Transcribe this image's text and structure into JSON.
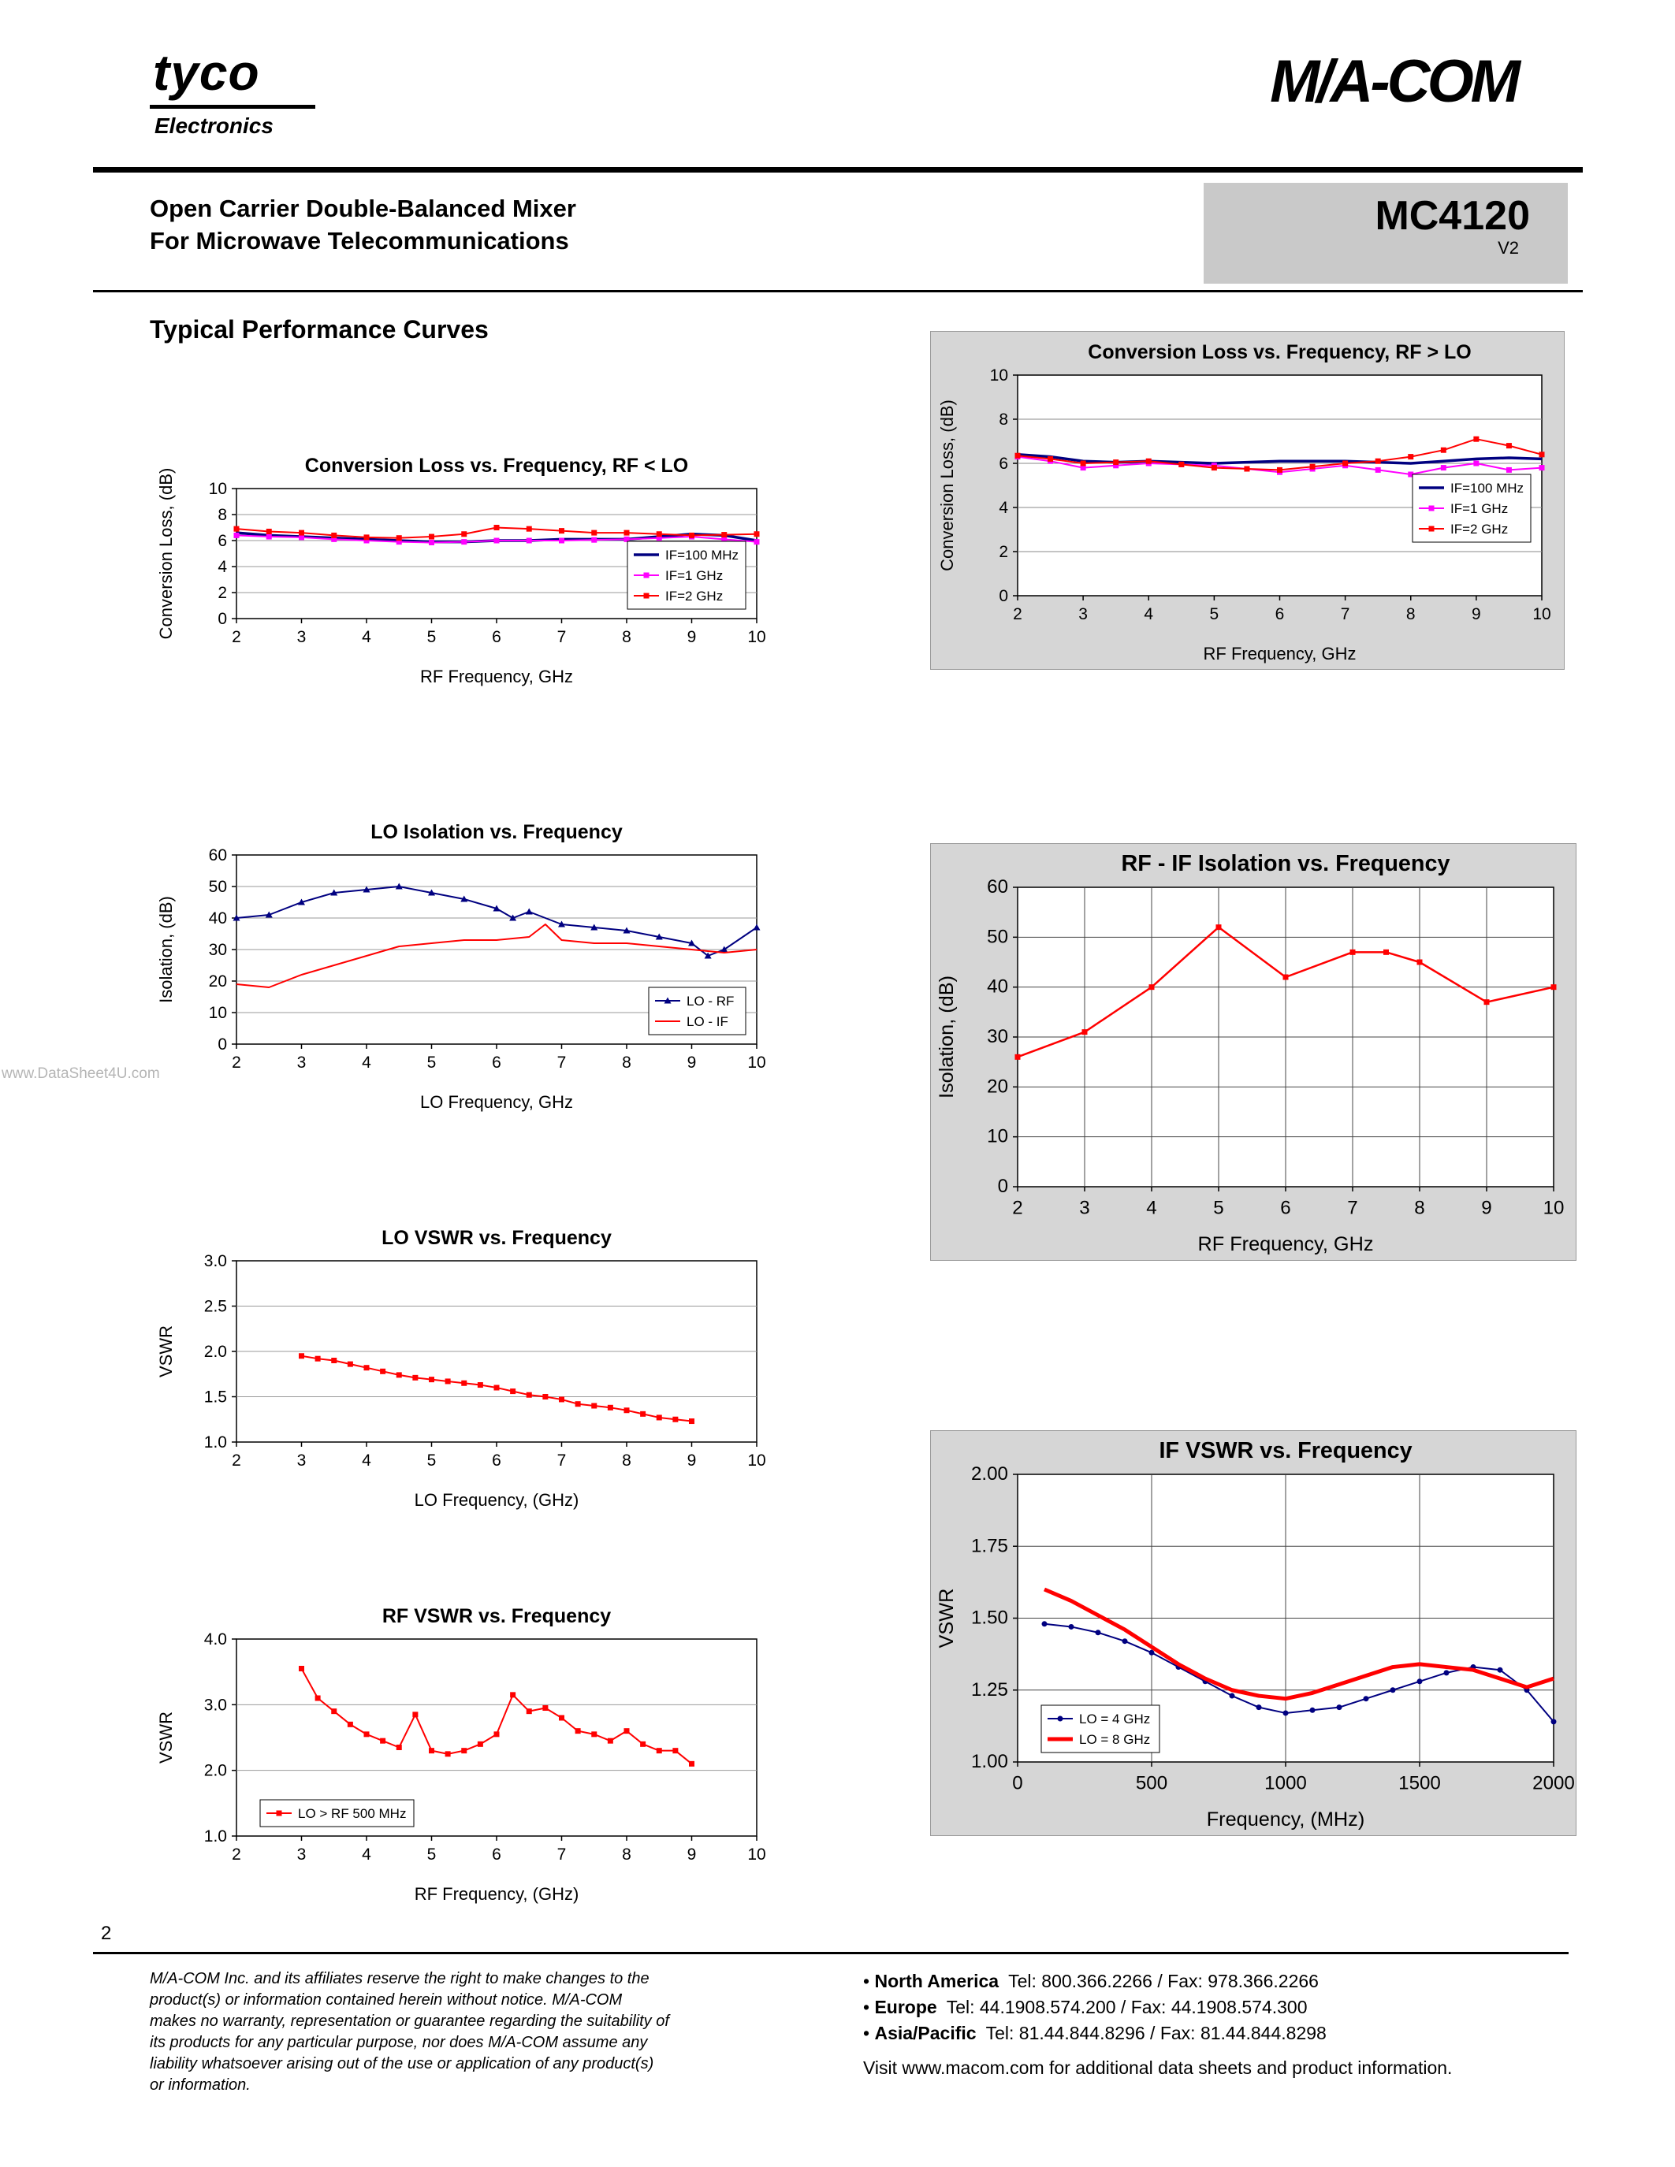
{
  "page": {
    "number": "2",
    "watermark": "www.DataSheet4U.com"
  },
  "header": {
    "brand_name": "tyco",
    "brand_sub": "Electronics",
    "logo_right": "M/A-COM",
    "title_line1": "Open Carrier Double-Balanced Mixer",
    "title_line2": "For Microwave Telecommunications",
    "part_number": "MC4120",
    "part_rev": "V2"
  },
  "section_title": "Typical Performance Curves",
  "footer": {
    "legal": "M/A-COM Inc. and its affiliates reserve the right to make changes to the product(s) or information contained herein without notice. M/A-COM makes no warranty, representation or guarantee regarding the suitability of its products for any particular purpose, nor does M/A-COM assume any liability whatsoever arising out of the use or application of any product(s) or information.",
    "contacts": [
      {
        "region": "North America",
        "info": "Tel: 800.366.2266 / Fax: 978.366.2266"
      },
      {
        "region": "Europe",
        "info": "Tel: 44.1908.574.200 / Fax: 44.1908.574.300"
      },
      {
        "region": "Asia/Pacific",
        "info": "Tel: 81.44.844.8296 / Fax: 81.44.844.8298"
      }
    ],
    "visit": "Visit www.macom.com for additional data sheets and product information."
  },
  "chart_data": [
    {
      "type": "line",
      "title": "Conversion Loss vs. Frequency,  RF < LO",
      "xlabel": "RF Frequency, GHz",
      "ylabel": "Conversion Loss, (dB)",
      "xlim": [
        2,
        10
      ],
      "ylim": [
        0,
        10
      ],
      "xticks": [
        2,
        3,
        4,
        5,
        6,
        7,
        8,
        9,
        10
      ],
      "xtick_labels": [
        "2",
        "3",
        "4",
        "5",
        "6",
        "7",
        "8",
        "9",
        "10"
      ],
      "yticks": [
        0,
        2,
        4,
        6,
        8,
        10
      ],
      "ytick_labels": [
        "0",
        "2",
        "4",
        "6",
        "8",
        "10"
      ],
      "grid_x": false,
      "grid_y": true,
      "grid_color": "#999999",
      "legend_pos": "bottom-right",
      "series": [
        {
          "name": "IF=100 MHz",
          "color": "#000080",
          "width": 3.5,
          "marker": "none",
          "x": [
            2,
            2.5,
            3,
            3.5,
            4,
            4.5,
            5,
            5.5,
            6,
            6.5,
            7,
            7.5,
            8,
            8.5,
            9,
            9.5,
            10
          ],
          "y": [
            6.6,
            6.4,
            6.3,
            6.2,
            6.1,
            6.0,
            5.9,
            5.9,
            6.0,
            6.0,
            6.1,
            6.1,
            6.1,
            6.3,
            6.5,
            6.4,
            6.0
          ]
        },
        {
          "name": "IF=1 GHz",
          "color": "#ff00ff",
          "width": 2,
          "marker": "square",
          "x": [
            2,
            2.5,
            3,
            3.5,
            4,
            4.5,
            5,
            5.5,
            6,
            6.5,
            7,
            7.5,
            8,
            8.5,
            9,
            9.5,
            10
          ],
          "y": [
            6.4,
            6.3,
            6.25,
            6.1,
            6.0,
            5.9,
            5.85,
            5.9,
            6.0,
            6.0,
            6.0,
            6.05,
            6.1,
            6.2,
            6.3,
            6.1,
            5.9
          ]
        },
        {
          "name": "IF=2 GHz",
          "color": "#ff0000",
          "width": 2,
          "marker": "square",
          "x": [
            2,
            2.5,
            3,
            3.5,
            4,
            4.5,
            5,
            5.5,
            6,
            6.5,
            7,
            7.5,
            8,
            8.5,
            9,
            9.5,
            10
          ],
          "y": [
            6.9,
            6.7,
            6.6,
            6.4,
            6.25,
            6.2,
            6.3,
            6.5,
            7.0,
            6.9,
            6.75,
            6.6,
            6.6,
            6.5,
            6.4,
            6.45,
            6.5
          ]
        }
      ]
    },
    {
      "type": "line",
      "title": "Conversion Loss vs. Frequency, RF > LO",
      "xlabel": "RF Frequency, GHz",
      "ylabel": "Conversion Loss, (dB)",
      "xlim": [
        2,
        10
      ],
      "ylim": [
        0,
        10
      ],
      "xticks": [
        2,
        3,
        4,
        5,
        6,
        7,
        8,
        9,
        10
      ],
      "xtick_labels": [
        "2",
        "3",
        "4",
        "5",
        "6",
        "7",
        "8",
        "9",
        "10"
      ],
      "yticks": [
        0,
        2,
        4,
        6,
        8,
        10
      ],
      "ytick_labels": [
        "0",
        "2",
        "4",
        "6",
        "8",
        "10"
      ],
      "grid_x": false,
      "grid_y": true,
      "grid_color": "#8a8a8a",
      "legend_pos": "right",
      "series": [
        {
          "name": "IF=100 MHz",
          "color": "#000080",
          "width": 3.5,
          "marker": "none",
          "x": [
            2,
            2.5,
            3,
            3.5,
            4,
            4.5,
            5,
            5.5,
            6,
            6.5,
            7,
            7.5,
            8,
            8.5,
            9,
            9.5,
            10
          ],
          "y": [
            6.4,
            6.3,
            6.1,
            6.05,
            6.1,
            6.05,
            6.0,
            6.05,
            6.1,
            6.1,
            6.1,
            6.05,
            6.0,
            6.1,
            6.2,
            6.25,
            6.2
          ]
        },
        {
          "name": "IF=1 GHz",
          "color": "#ff00ff",
          "width": 2,
          "marker": "square",
          "x": [
            2,
            2.5,
            3,
            3.5,
            4,
            4.5,
            5,
            5.5,
            6,
            6.5,
            7,
            7.5,
            8,
            8.5,
            9,
            9.5,
            10
          ],
          "y": [
            6.3,
            6.1,
            5.8,
            5.9,
            6.0,
            5.95,
            5.9,
            5.75,
            5.6,
            5.75,
            5.9,
            5.7,
            5.5,
            5.8,
            6.0,
            5.7,
            5.8
          ]
        },
        {
          "name": "IF=2 GHz",
          "color": "#ff0000",
          "width": 2,
          "marker": "square",
          "x": [
            2,
            2.5,
            3,
            3.5,
            4,
            4.5,
            5,
            5.5,
            6,
            6.5,
            7,
            7.5,
            8,
            8.5,
            9,
            9.5,
            10
          ],
          "y": [
            6.35,
            6.2,
            6.0,
            6.05,
            6.1,
            5.95,
            5.8,
            5.75,
            5.7,
            5.85,
            6.0,
            6.1,
            6.3,
            6.6,
            7.1,
            6.8,
            6.4
          ]
        }
      ]
    },
    {
      "type": "line",
      "title": "LO Isolation vs. Frequency",
      "xlabel": "LO Frequency, GHz",
      "ylabel": "Isolation, (dB)",
      "xlim": [
        2,
        10
      ],
      "ylim": [
        0,
        60
      ],
      "xticks": [
        2,
        3,
        4,
        5,
        6,
        7,
        8,
        9,
        10
      ],
      "xtick_labels": [
        "2",
        "3",
        "4",
        "5",
        "6",
        "7",
        "8",
        "9",
        "10"
      ],
      "yticks": [
        0,
        10,
        20,
        30,
        40,
        50,
        60
      ],
      "ytick_labels": [
        "0",
        "10",
        "20",
        "30",
        "40",
        "50",
        "60"
      ],
      "grid_x": false,
      "grid_y": true,
      "grid_color": "#999999",
      "legend_pos": "bottom-right",
      "series": [
        {
          "name": "LO - RF",
          "color": "#000080",
          "width": 2,
          "marker": "triangle",
          "x": [
            2,
            2.5,
            3,
            3.5,
            4,
            4.5,
            5,
            5.5,
            6,
            6.25,
            6.5,
            7,
            7.5,
            8,
            8.5,
            9,
            9.25,
            9.5,
            10
          ],
          "y": [
            40,
            41,
            45,
            48,
            49,
            50,
            48,
            46,
            43,
            40,
            42,
            38,
            37,
            36,
            34,
            32,
            28,
            30,
            37
          ]
        },
        {
          "name": "LO - IF",
          "color": "#ff0000",
          "width": 2,
          "marker": "none",
          "x": [
            2,
            2.5,
            3,
            3.5,
            4,
            4.5,
            5,
            5.5,
            6,
            6.5,
            6.75,
            7,
            7.5,
            8,
            8.5,
            9,
            9.5,
            10
          ],
          "y": [
            19,
            18,
            22,
            25,
            28,
            31,
            32,
            33,
            33,
            34,
            38,
            33,
            32,
            32,
            31,
            30,
            29,
            30
          ]
        }
      ]
    },
    {
      "type": "line",
      "title": "RF - IF Isolation vs. Frequency",
      "xlabel": "RF Frequency, GHz",
      "ylabel": "Isolation, (dB)",
      "xlim": [
        2,
        10
      ],
      "ylim": [
        0,
        60
      ],
      "xticks": [
        2,
        3,
        4,
        5,
        6,
        7,
        8,
        9,
        10
      ],
      "xtick_labels": [
        "2",
        "3",
        "4",
        "5",
        "6",
        "7",
        "8",
        "9",
        "10"
      ],
      "yticks": [
        0,
        10,
        20,
        30,
        40,
        50,
        60
      ],
      "ytick_labels": [
        "0",
        "10",
        "20",
        "30",
        "40",
        "50",
        "60"
      ],
      "grid_x": true,
      "grid_y": true,
      "grid_color": "#444444",
      "legend_pos": null,
      "font_scale": 1.15,
      "series": [
        {
          "name": "RF - IF Isolation",
          "color": "#ff0000",
          "width": 2.5,
          "marker": "square",
          "x": [
            2,
            3,
            4,
            5,
            6,
            7,
            7.5,
            8,
            9,
            10
          ],
          "y": [
            26,
            31,
            40,
            52,
            42,
            47,
            47,
            45,
            37,
            40
          ]
        }
      ]
    },
    {
      "type": "line",
      "title": "LO  VSWR  vs. Frequency",
      "xlabel": "LO  Frequency, (GHz)",
      "ylabel": "VSWR",
      "xlim": [
        2,
        10
      ],
      "ylim": [
        1.0,
        3.0
      ],
      "xticks": [
        2,
        3,
        4,
        5,
        6,
        7,
        8,
        9,
        10
      ],
      "xtick_labels": [
        "2",
        "3",
        "4",
        "5",
        "6",
        "7",
        "8",
        "9",
        "10"
      ],
      "yticks": [
        1.0,
        1.5,
        2.0,
        2.5,
        3.0
      ],
      "ytick_labels": [
        "1.0",
        "1.5",
        "2.0",
        "2.5",
        "3.0"
      ],
      "grid_x": false,
      "grid_y": true,
      "grid_color": "#999999",
      "legend_pos": null,
      "series": [
        {
          "name": "LO VSWR",
          "color": "#ff0000",
          "width": 2,
          "marker": "square",
          "x": [
            3,
            3.25,
            3.5,
            3.75,
            4,
            4.25,
            4.5,
            4.75,
            5,
            5.25,
            5.5,
            5.75,
            6,
            6.25,
            6.5,
            6.75,
            7,
            7.25,
            7.5,
            7.75,
            8,
            8.25,
            8.5,
            8.75,
            9
          ],
          "y": [
            1.95,
            1.92,
            1.9,
            1.86,
            1.82,
            1.78,
            1.74,
            1.71,
            1.69,
            1.67,
            1.65,
            1.63,
            1.6,
            1.56,
            1.52,
            1.5,
            1.47,
            1.42,
            1.4,
            1.38,
            1.35,
            1.31,
            1.27,
            1.25,
            1.23
          ]
        }
      ]
    },
    {
      "type": "line",
      "title": "RF VSWR vs. Frequency",
      "xlabel": "RF Frequency, (GHz)",
      "ylabel": "VSWR",
      "xlim": [
        2,
        10
      ],
      "ylim": [
        1.0,
        4.0
      ],
      "xticks": [
        2,
        3,
        4,
        5,
        6,
        7,
        8,
        9,
        10
      ],
      "xtick_labels": [
        "2",
        "3",
        "4",
        "5",
        "6",
        "7",
        "8",
        "9",
        "10"
      ],
      "yticks": [
        1.0,
        2.0,
        3.0,
        4.0
      ],
      "ytick_labels": [
        "1.0",
        "2.0",
        "3.0",
        "4.0"
      ],
      "grid_x": false,
      "grid_y": true,
      "grid_color": "#999999",
      "legend_pos": "bottom-left",
      "series": [
        {
          "name": "LO > RF 500 MHz",
          "color": "#ff0000",
          "width": 2,
          "marker": "square",
          "x": [
            3,
            3.25,
            3.5,
            3.75,
            4,
            4.25,
            4.5,
            4.75,
            5,
            5.25,
            5.5,
            5.75,
            6,
            6.25,
            6.5,
            6.75,
            7,
            7.25,
            7.5,
            7.75,
            8,
            8.25,
            8.5,
            8.75,
            9
          ],
          "y": [
            3.55,
            3.1,
            2.9,
            2.7,
            2.55,
            2.45,
            2.35,
            2.85,
            2.3,
            2.25,
            2.3,
            2.4,
            2.55,
            3.15,
            2.9,
            2.95,
            2.8,
            2.6,
            2.55,
            2.45,
            2.6,
            2.4,
            2.3,
            2.3,
            2.1
          ]
        }
      ]
    },
    {
      "type": "line",
      "title": "IF VSWR  vs. Frequency",
      "xlabel": "Frequency, (MHz)",
      "ylabel": "VSWR",
      "xlim": [
        0,
        2000
      ],
      "ylim": [
        1.0,
        2.0
      ],
      "xticks": [
        0,
        500,
        1000,
        1500,
        2000
      ],
      "xtick_labels": [
        "0",
        "500",
        "1000",
        "1500",
        "2000"
      ],
      "yticks": [
        1.0,
        1.25,
        1.5,
        1.75,
        2.0
      ],
      "ytick_labels": [
        "1.00",
        "1.25",
        "1.50",
        "1.75",
        "2.00"
      ],
      "grid_x": true,
      "grid_y": true,
      "grid_color": "#444444",
      "legend_pos": "bottom-left",
      "font_scale": 1.15,
      "series": [
        {
          "name": "LO = 4 GHz",
          "color": "#000080",
          "width": 2,
          "marker": "dot",
          "x": [
            100,
            200,
            300,
            400,
            500,
            600,
            700,
            800,
            900,
            1000,
            1100,
            1200,
            1300,
            1400,
            1500,
            1600,
            1700,
            1800,
            1900,
            2000
          ],
          "y": [
            1.48,
            1.47,
            1.45,
            1.42,
            1.38,
            1.33,
            1.28,
            1.23,
            1.19,
            1.17,
            1.18,
            1.19,
            1.22,
            1.25,
            1.28,
            1.31,
            1.33,
            1.32,
            1.25,
            1.14
          ]
        },
        {
          "name": "LO = 8 GHz",
          "color": "#ff0000",
          "width": 5,
          "marker": "none",
          "x": [
            100,
            200,
            300,
            400,
            500,
            600,
            700,
            800,
            900,
            1000,
            1100,
            1200,
            1300,
            1400,
            1500,
            1600,
            1700,
            1800,
            1900,
            2000
          ],
          "y": [
            1.6,
            1.56,
            1.51,
            1.46,
            1.4,
            1.34,
            1.29,
            1.25,
            1.23,
            1.22,
            1.24,
            1.27,
            1.3,
            1.33,
            1.34,
            1.33,
            1.32,
            1.29,
            1.26,
            1.29
          ]
        }
      ]
    }
  ]
}
